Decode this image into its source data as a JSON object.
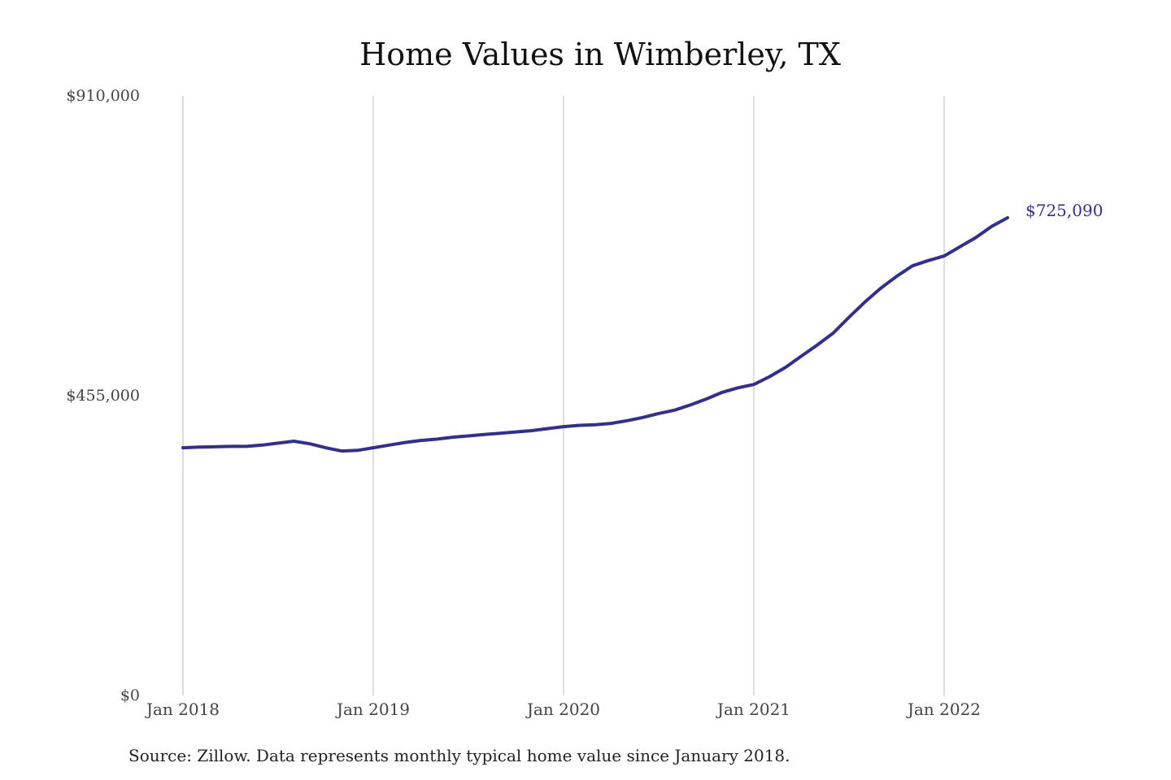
{
  "chart_data": {
    "type": "line",
    "title": "Home Values in Wimberley, TX",
    "xlabel": "",
    "ylabel": "",
    "ylim": [
      0,
      910000
    ],
    "yticks": [
      {
        "value": 0,
        "label": "$0"
      },
      {
        "value": 455000,
        "label": "$455,000"
      },
      {
        "value": 910000,
        "label": "$910,000"
      }
    ],
    "xticks": [
      {
        "value": "2018-01",
        "label": "Jan 2018"
      },
      {
        "value": "2019-01",
        "label": "Jan 2019"
      },
      {
        "value": "2020-01",
        "label": "Jan 2020"
      },
      {
        "value": "2021-01",
        "label": "Jan 2021"
      },
      {
        "value": "2022-01",
        "label": "Jan 2022"
      }
    ],
    "grid": "vertical",
    "color": "#33308a",
    "end_label": "$725,090",
    "series": [
      {
        "x": [
          "2018-01",
          "2018-02",
          "2018-03",
          "2018-04",
          "2018-05",
          "2018-06",
          "2018-07",
          "2018-08",
          "2018-09",
          "2018-10",
          "2018-11",
          "2018-12",
          "2019-01",
          "2019-02",
          "2019-03",
          "2019-04",
          "2019-05",
          "2019-06",
          "2019-07",
          "2019-08",
          "2019-09",
          "2019-10",
          "2019-11",
          "2019-12",
          "2020-01",
          "2020-02",
          "2020-03",
          "2020-04",
          "2020-05",
          "2020-06",
          "2020-07",
          "2020-08",
          "2020-09",
          "2020-10",
          "2020-11",
          "2020-12",
          "2021-01",
          "2021-02",
          "2021-03",
          "2021-04",
          "2021-05",
          "2021-06",
          "2021-07",
          "2021-08",
          "2021-09",
          "2021-10",
          "2021-11",
          "2021-12",
          "2022-01",
          "2022-02",
          "2022-03",
          "2022-04",
          "2022-05"
        ],
        "values": [
          376000,
          377000,
          377500,
          378000,
          378000,
          380000,
          383000,
          386000,
          382000,
          376000,
          371000,
          372000,
          376000,
          380000,
          384000,
          387000,
          389000,
          392000,
          394000,
          396000,
          398000,
          400000,
          402000,
          405000,
          408000,
          410000,
          411000,
          413000,
          417000,
          422000,
          428000,
          433000,
          441000,
          450000,
          460000,
          467000,
          472000,
          484000,
          498000,
          515000,
          532000,
          550000,
          574000,
          597000,
          618000,
          636000,
          652000,
          660000,
          667000,
          681000,
          695000,
          712000,
          725090
        ]
      }
    ]
  },
  "footer": {
    "source": "Source: Zillow. Data represents monthly typical home value since January 2018."
  }
}
